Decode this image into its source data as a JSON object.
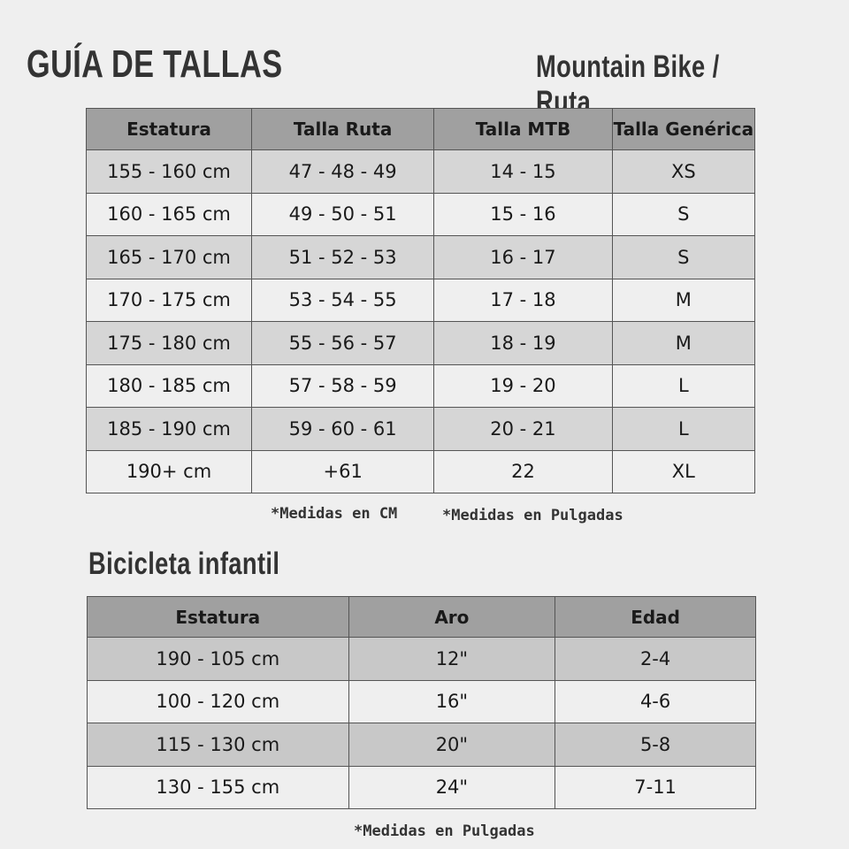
{
  "title": "GUÍA DE TALLAS",
  "subtitle": "Mountain Bike / Ruta",
  "adult_table": {
    "headers": [
      "Estatura",
      "Talla Ruta",
      "Talla MTB",
      "Talla Genérica"
    ],
    "rows": [
      [
        "155 - 160 cm",
        "47 - 48 - 49",
        "14 - 15",
        "XS"
      ],
      [
        "160 - 165 cm",
        "49 - 50 - 51",
        "15 - 16",
        "S"
      ],
      [
        "165 - 170 cm",
        "51 - 52 - 53",
        "16 - 17",
        "S"
      ],
      [
        "170 - 175 cm",
        "53 - 54 - 55",
        "17 - 18",
        "M"
      ],
      [
        "175 - 180 cm",
        "55 - 56 - 57",
        "18 - 19",
        "M"
      ],
      [
        "180 - 185 cm",
        "57 - 58 - 59",
        "19 - 20",
        "L"
      ],
      [
        "185 - 190 cm",
        "59 - 60 - 61",
        "20 - 21",
        "L"
      ],
      [
        "190+ cm",
        "+61",
        "22",
        "XL"
      ]
    ],
    "notes": [
      "*Medidas en CM",
      "*Medidas en Pulgadas"
    ]
  },
  "kids_title": "Bicicleta infantil",
  "kids_table": {
    "headers": [
      "Estatura",
      "Aro",
      "Edad"
    ],
    "rows": [
      [
        "190 - 105 cm",
        "12\"",
        "2-4"
      ],
      [
        "100 - 120 cm",
        "16\"",
        "4-6"
      ],
      [
        "115 - 130 cm",
        "20\"",
        "5-8"
      ],
      [
        "130 - 155 cm",
        "24\"",
        "7-11"
      ]
    ],
    "note": "*Medidas en Pulgadas"
  }
}
